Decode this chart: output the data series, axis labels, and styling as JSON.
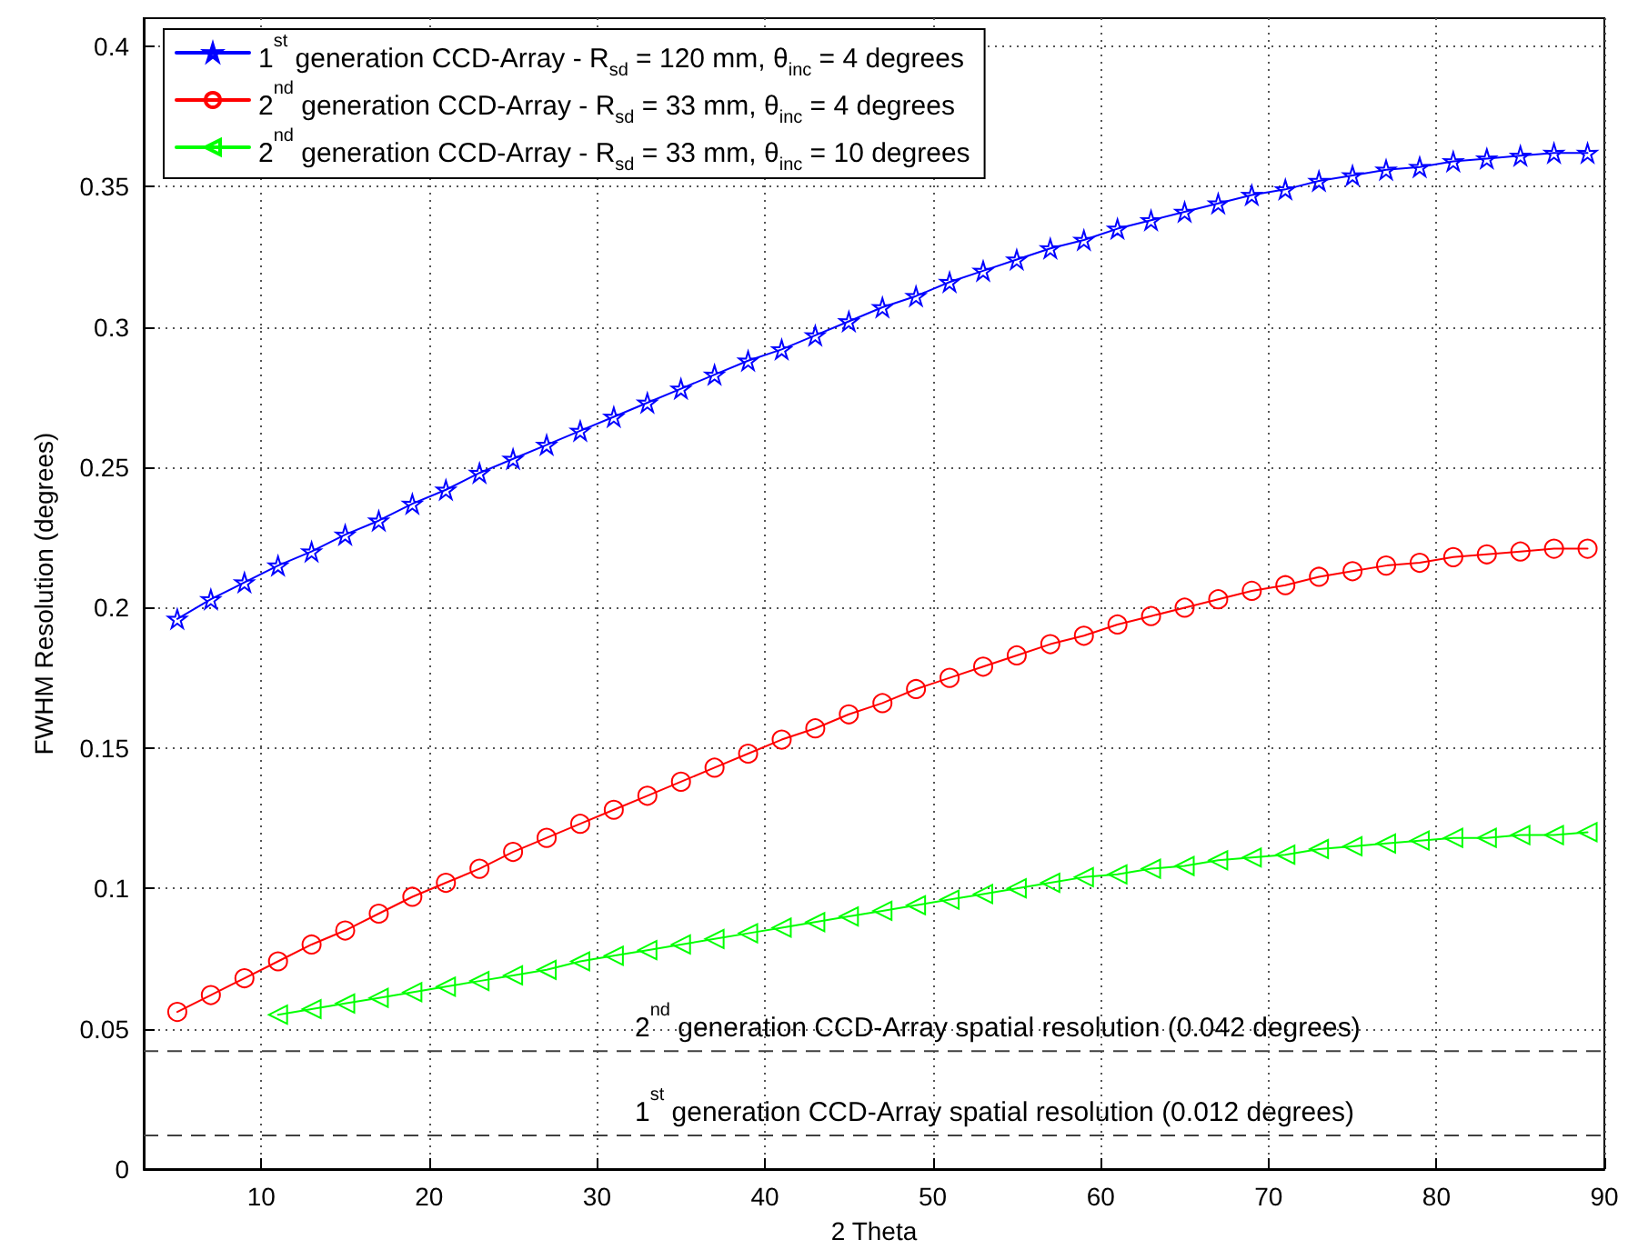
{
  "chart_data": {
    "type": "line",
    "xlabel": "2 Theta",
    "ylabel": "FWHM Resolution (degrees)",
    "xlim": [
      3,
      90
    ],
    "xticks": [
      10,
      20,
      30,
      40,
      50,
      60,
      70,
      80,
      90
    ],
    "ylim": [
      0,
      0.41
    ],
    "yticks": [
      0,
      0.05,
      0.1,
      0.15,
      0.2,
      0.25,
      0.3,
      0.35,
      0.4
    ],
    "grid": true,
    "legend": "top left",
    "line_style": "solid",
    "series": [
      {
        "name": "1$^{st}$ generation CCD-Array - R$_{sd}$ = 120 mm, θ$_{inc}$ = 4 degrees",
        "color": "#0000ff",
        "marker": "star",
        "x": [
          5,
          7,
          9,
          11,
          13,
          15,
          17,
          19,
          21,
          23,
          25,
          27,
          29,
          31,
          33,
          35,
          37,
          39,
          41,
          43,
          45,
          47,
          49,
          51,
          53,
          55,
          57,
          59,
          61,
          63,
          65,
          67,
          69,
          71,
          73,
          75,
          77,
          79,
          81,
          83,
          85,
          87,
          89
        ],
        "values": [
          0.196,
          0.203,
          0.209,
          0.215,
          0.22,
          0.226,
          0.231,
          0.237,
          0.242,
          0.248,
          0.253,
          0.258,
          0.263,
          0.268,
          0.273,
          0.278,
          0.283,
          0.288,
          0.292,
          0.297,
          0.302,
          0.307,
          0.311,
          0.316,
          0.32,
          0.324,
          0.328,
          0.331,
          0.335,
          0.338,
          0.341,
          0.344,
          0.347,
          0.349,
          0.352,
          0.354,
          0.356,
          0.357,
          0.359,
          0.36,
          0.361,
          0.362,
          0.362
        ]
      },
      {
        "name": "2$^{nd}$ generation CCD-Array - R$_{sd}$ = 33 mm, θ$_{inc}$ = 4 degrees",
        "color": "#ff0000",
        "marker": "circle",
        "x": [
          5,
          7,
          9,
          11,
          13,
          15,
          17,
          19,
          21,
          23,
          25,
          27,
          29,
          31,
          33,
          35,
          37,
          39,
          41,
          43,
          45,
          47,
          49,
          51,
          53,
          55,
          57,
          59,
          61,
          63,
          65,
          67,
          69,
          71,
          73,
          75,
          77,
          79,
          81,
          83,
          85,
          87,
          89
        ],
        "values": [
          0.056,
          0.062,
          0.068,
          0.074,
          0.08,
          0.085,
          0.091,
          0.097,
          0.102,
          0.107,
          0.113,
          0.118,
          0.123,
          0.128,
          0.133,
          0.138,
          0.143,
          0.148,
          0.153,
          0.157,
          0.162,
          0.166,
          0.171,
          0.175,
          0.179,
          0.183,
          0.187,
          0.19,
          0.194,
          0.197,
          0.2,
          0.203,
          0.206,
          0.208,
          0.211,
          0.213,
          0.215,
          0.216,
          0.218,
          0.219,
          0.22,
          0.221,
          0.221
        ]
      },
      {
        "name": "2$^{nd}$ generation CCD-Array - R$_{sd}$ = 33 mm, θ$_{inc}$ = 10 degrees",
        "color": "#00ff00",
        "marker": "triangle",
        "x": [
          11,
          13,
          15,
          17,
          19,
          21,
          23,
          25,
          27,
          29,
          31,
          33,
          35,
          37,
          39,
          41,
          43,
          45,
          47,
          49,
          51,
          53,
          55,
          57,
          59,
          61,
          63,
          65,
          67,
          69,
          71,
          73,
          75,
          77,
          79,
          81,
          83,
          85,
          87,
          89
        ],
        "values": [
          0.055,
          0.057,
          0.059,
          0.061,
          0.063,
          0.065,
          0.067,
          0.069,
          0.071,
          0.074,
          0.076,
          0.078,
          0.08,
          0.082,
          0.084,
          0.086,
          0.088,
          0.09,
          0.092,
          0.094,
          0.096,
          0.098,
          0.1,
          0.102,
          0.104,
          0.105,
          0.107,
          0.108,
          0.11,
          0.111,
          0.112,
          0.114,
          0.115,
          0.116,
          0.117,
          0.118,
          0.118,
          0.119,
          0.119,
          0.12
        ]
      }
    ],
    "ref_lines": [
      {
        "axis": "y",
        "value": 0.042,
        "label": "2$^{nd}$ generation CCD-Array spatial resolution (0.042 degrees)",
        "color": "#404040",
        "line_style": "dashed"
      },
      {
        "axis": "y",
        "value": 0.012,
        "label": "1$^{st}$ generation CCD-Array spatial resolution (0.012 degrees)",
        "color": "#404040",
        "line_style": "dashed"
      }
    ]
  }
}
